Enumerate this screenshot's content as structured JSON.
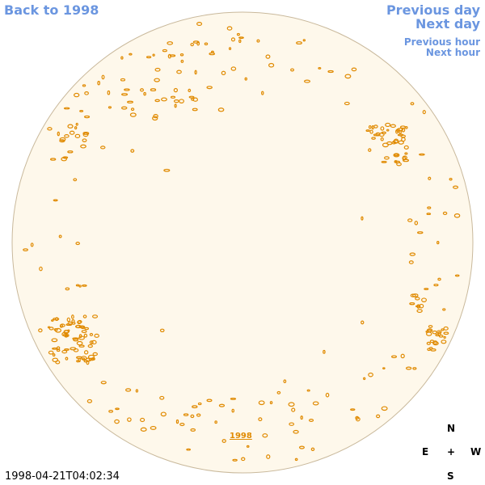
{
  "nav": {
    "back": "Back to 1998",
    "previous_day": "Previous day",
    "next_day": "Next day",
    "previous_hour": "Previous hour",
    "next_hour": "Next hour"
  },
  "year_link": "1998",
  "timestamp": "1998-04-21T04:02:34",
  "compass": {
    "north": "N",
    "east": "E",
    "center": "+",
    "west": "W",
    "south": "S"
  }
}
